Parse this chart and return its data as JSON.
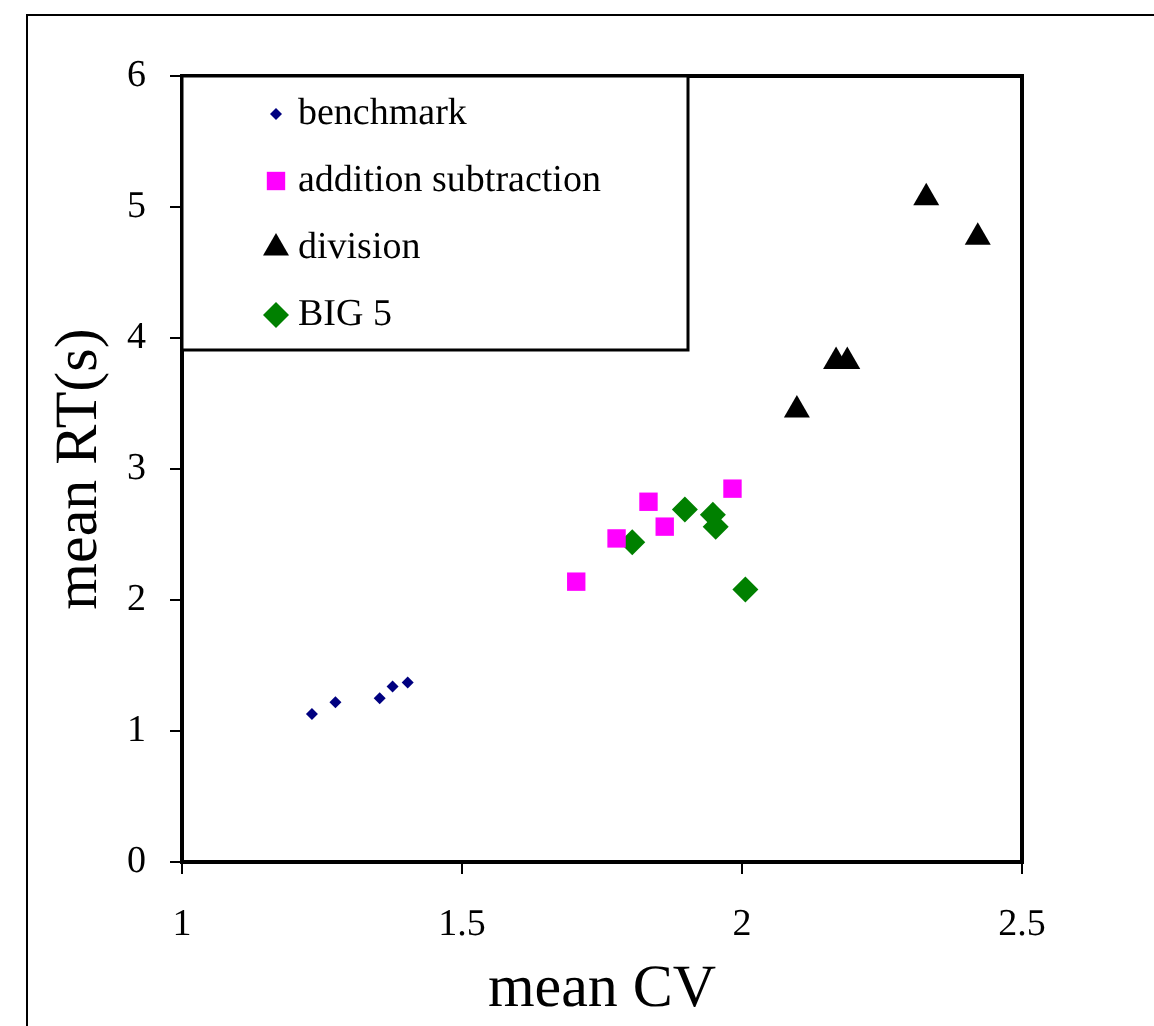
{
  "chart_data": {
    "type": "scatter",
    "xlabel": "mean CV",
    "ylabel": "mean RT(s)",
    "xlim": [
      1,
      2.5
    ],
    "xticks": [
      1,
      1.5,
      2,
      2.5
    ],
    "ylim": [
      0,
      6
    ],
    "yticks": [
      0,
      1,
      2,
      3,
      4,
      5,
      6
    ],
    "grid": false,
    "legend": "top left",
    "series": [
      {
        "name": "benchmark",
        "color": "#000080",
        "marker": "diamond",
        "x": [
          1.232,
          1.274,
          1.353,
          1.376,
          1.403
        ],
        "values": [
          1.13,
          1.22,
          1.25,
          1.34,
          1.37
        ]
      },
      {
        "name": "addition subtraction",
        "color": "#ff00ff",
        "marker": "square",
        "x": [
          1.704,
          1.776,
          1.833,
          1.862,
          1.983
        ],
        "values": [
          2.14,
          2.47,
          2.75,
          2.56,
          2.85
        ]
      },
      {
        "name": "division",
        "color": "#000000",
        "marker": "triangle",
        "x": [
          2.098,
          2.168,
          2.188,
          2.329,
          2.421
        ],
        "values": [
          3.45,
          3.82,
          3.82,
          5.07,
          4.77
        ]
      },
      {
        "name": "BIG 5",
        "color": "#008000",
        "marker": "diamond",
        "x": [
          1.804,
          1.898,
          1.948,
          1.953,
          2.006
        ],
        "values": [
          2.44,
          2.69,
          2.65,
          2.56,
          2.08
        ]
      }
    ]
  }
}
